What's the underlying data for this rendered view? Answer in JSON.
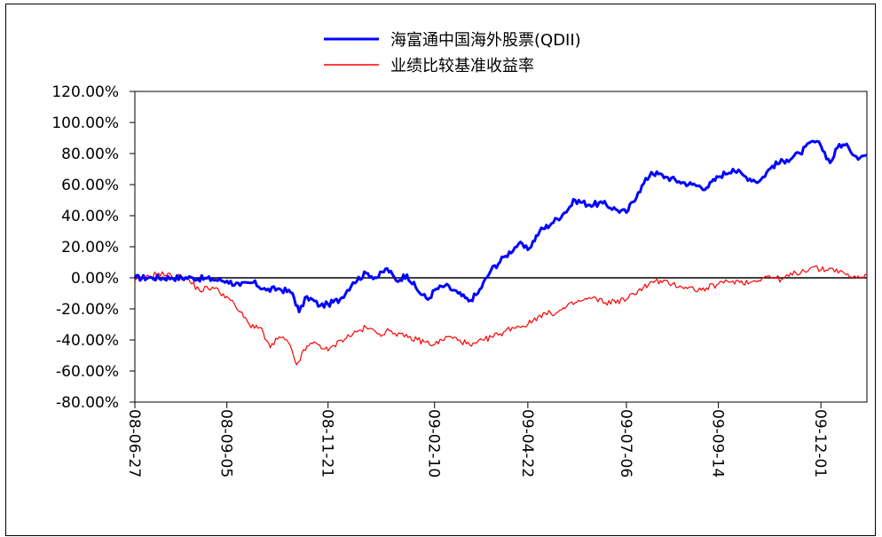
{
  "chart_data": {
    "type": "line",
    "title": "",
    "xlabel": "",
    "ylabel": "",
    "ylim": [
      -80,
      120
    ],
    "y_ticks": [
      "120.00%",
      "100.00%",
      "80.00%",
      "60.00%",
      "40.00%",
      "20.00%",
      "0.00%",
      "-20.00%",
      "-40.00%",
      "-60.00%",
      "-80.00%"
    ],
    "y_tick_values": [
      120,
      100,
      80,
      60,
      40,
      20,
      0,
      -20,
      -40,
      -60,
      -80
    ],
    "x_ticks": [
      "08-06-27",
      "08-09-05",
      "08-11-21",
      "09-02-10",
      "09-04-22",
      "09-07-06",
      "09-09-14",
      "09-12-01"
    ],
    "x_range": [
      "08-06-27",
      "10-01-05"
    ],
    "legend_position": "top-center",
    "grid": false,
    "zero_line": true,
    "series": [
      {
        "name": "海富通中国海外股票(QDII)",
        "color": "#0000ff",
        "points": [
          [
            "08-06-27",
            0
          ],
          [
            "08-07-10",
            0
          ],
          [
            "08-07-25",
            0
          ],
          [
            "08-08-10",
            0
          ],
          [
            "08-08-25",
            -1
          ],
          [
            "08-09-05",
            -2
          ],
          [
            "08-09-15",
            -5
          ],
          [
            "08-09-25",
            -3
          ],
          [
            "08-10-05",
            -8
          ],
          [
            "08-10-15",
            -7
          ],
          [
            "08-10-25",
            -10
          ],
          [
            "08-10-30",
            -22
          ],
          [
            "08-11-05",
            -12
          ],
          [
            "08-11-15",
            -18
          ],
          [
            "08-11-21",
            -17
          ],
          [
            "08-11-30",
            -14
          ],
          [
            "08-12-10",
            -3
          ],
          [
            "08-12-20",
            3
          ],
          [
            "08-12-28",
            0
          ],
          [
            "09-01-05",
            6
          ],
          [
            "09-01-12",
            -2
          ],
          [
            "09-01-20",
            2
          ],
          [
            "09-01-28",
            -8
          ],
          [
            "09-02-05",
            -14
          ],
          [
            "09-02-10",
            -8
          ],
          [
            "09-02-18",
            -5
          ],
          [
            "09-02-28",
            -10
          ],
          [
            "09-03-08",
            -15
          ],
          [
            "09-03-15",
            -10
          ],
          [
            "09-03-25",
            5
          ],
          [
            "09-04-05",
            14
          ],
          [
            "09-04-15",
            22
          ],
          [
            "09-04-22",
            18
          ],
          [
            "09-05-01",
            30
          ],
          [
            "09-05-10",
            35
          ],
          [
            "09-05-20",
            42
          ],
          [
            "09-05-28",
            50
          ],
          [
            "09-06-08",
            47
          ],
          [
            "09-06-18",
            48
          ],
          [
            "09-06-28",
            44
          ],
          [
            "09-07-06",
            42
          ],
          [
            "09-07-15",
            55
          ],
          [
            "09-07-25",
            68
          ],
          [
            "09-08-05",
            65
          ],
          [
            "09-08-15",
            62
          ],
          [
            "09-08-25",
            60
          ],
          [
            "09-09-05",
            58
          ],
          [
            "09-09-14",
            65
          ],
          [
            "09-09-25",
            70
          ],
          [
            "09-10-05",
            65
          ],
          [
            "09-10-15",
            62
          ],
          [
            "09-10-25",
            72
          ],
          [
            "09-11-05",
            76
          ],
          [
            "09-11-15",
            80
          ],
          [
            "09-11-25",
            88
          ],
          [
            "09-12-01",
            85
          ],
          [
            "09-12-08",
            74
          ],
          [
            "09-12-15",
            86
          ],
          [
            "09-12-22",
            84
          ],
          [
            "09-12-28",
            78
          ],
          [
            "10-01-05",
            79
          ]
        ]
      },
      {
        "name": "业绩比较基准收益率",
        "color": "#ff0000",
        "points": [
          [
            "08-06-27",
            -2
          ],
          [
            "08-07-05",
            0
          ],
          [
            "08-07-15",
            3
          ],
          [
            "08-07-25",
            1
          ],
          [
            "08-08-05",
            0
          ],
          [
            "08-08-15",
            -8
          ],
          [
            "08-08-25",
            -6
          ],
          [
            "08-09-05",
            -12
          ],
          [
            "08-09-15",
            -22
          ],
          [
            "08-09-22",
            -30
          ],
          [
            "08-09-30",
            -32
          ],
          [
            "08-10-08",
            -45
          ],
          [
            "08-10-15",
            -38
          ],
          [
            "08-10-22",
            -42
          ],
          [
            "08-10-28",
            -56
          ],
          [
            "08-11-05",
            -44
          ],
          [
            "08-11-12",
            -42
          ],
          [
            "08-11-21",
            -47
          ],
          [
            "08-12-01",
            -40
          ],
          [
            "08-12-10",
            -36
          ],
          [
            "08-12-20",
            -32
          ],
          [
            "08-12-30",
            -36
          ],
          [
            "09-01-08",
            -34
          ],
          [
            "09-01-18",
            -38
          ],
          [
            "09-01-28",
            -40
          ],
          [
            "09-02-10",
            -43
          ],
          [
            "09-02-20",
            -38
          ],
          [
            "09-03-01",
            -40
          ],
          [
            "09-03-10",
            -44
          ],
          [
            "09-03-20",
            -40
          ],
          [
            "09-04-01",
            -36
          ],
          [
            "09-04-10",
            -32
          ],
          [
            "09-04-22",
            -30
          ],
          [
            "09-05-01",
            -24
          ],
          [
            "09-05-15",
            -22
          ],
          [
            "09-05-28",
            -16
          ],
          [
            "09-06-10",
            -13
          ],
          [
            "09-06-20",
            -16
          ],
          [
            "09-07-06",
            -14
          ],
          [
            "09-07-15",
            -8
          ],
          [
            "09-07-28",
            -2
          ],
          [
            "09-08-10",
            -4
          ],
          [
            "09-08-20",
            -6
          ],
          [
            "09-09-01",
            -8
          ],
          [
            "09-09-14",
            -4
          ],
          [
            "09-09-25",
            -2
          ],
          [
            "09-10-08",
            -3
          ],
          [
            "09-10-20",
            1
          ],
          [
            "09-11-01",
            -1
          ],
          [
            "09-11-12",
            3
          ],
          [
            "09-11-25",
            7
          ],
          [
            "09-12-01",
            5
          ],
          [
            "09-12-10",
            6
          ],
          [
            "09-12-20",
            2
          ],
          [
            "09-12-28",
            0
          ],
          [
            "10-01-05",
            2
          ]
        ]
      }
    ]
  }
}
